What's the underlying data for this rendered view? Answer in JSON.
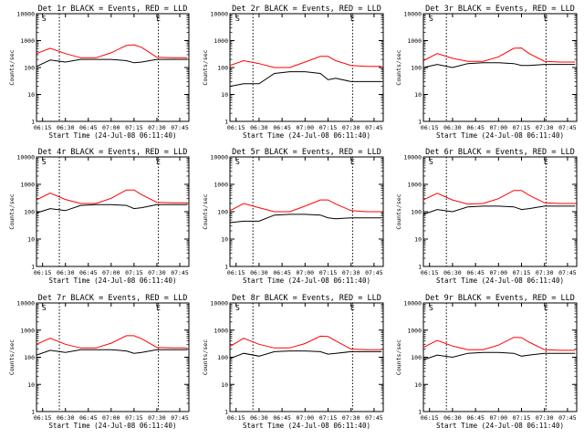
{
  "chart_data": [
    {
      "type": "line",
      "panel": "1r",
      "title": "Det 1r BLACK = Events, RED = LLD",
      "xlabel": "Start Time (24-Jul-08 06:11:40)",
      "ylabel": "Counts/sec",
      "x_ticks": [
        "06:15",
        "06:30",
        "06:45",
        "07:00",
        "07:15",
        "07:30",
        "07:45"
      ],
      "y_ticks": [
        "1",
        "10",
        "100",
        "1000",
        "10000"
      ],
      "y_scale": "log",
      "ylim": [
        1,
        10000
      ],
      "xlim": [
        "06:11",
        "07:51"
      ],
      "markers": [
        "S",
        "E"
      ],
      "marker_times": [
        "06:16",
        "07:31"
      ],
      "event_lines": [
        "06:26",
        "07:31"
      ],
      "series": [
        {
          "color": "#ff0000",
          "x": [
            "06:11",
            "06:20",
            "06:30",
            "06:40",
            "06:50",
            "07:00",
            "07:10",
            "07:15",
            "07:20",
            "07:30",
            "07:40",
            "07:50"
          ],
          "y": [
            330,
            520,
            330,
            230,
            230,
            350,
            660,
            700,
            560,
            240,
            230,
            230
          ]
        },
        {
          "color": "#000000",
          "x": [
            "06:11",
            "06:20",
            "06:30",
            "06:40",
            "06:50",
            "07:00",
            "07:10",
            "07:15",
            "07:20",
            "07:30",
            "07:40",
            "07:50"
          ],
          "y": [
            110,
            190,
            160,
            200,
            200,
            200,
            180,
            150,
            160,
            200,
            200,
            200
          ]
        }
      ]
    },
    {
      "type": "line",
      "panel": "2r",
      "title": "Det 2r BLACK = Events, RED = LLD",
      "xlabel": "Start Time (24-Jul-08 06:11:40)",
      "ylabel": "Counts/sec",
      "x_ticks": [
        "06:15",
        "06:30",
        "06:45",
        "07:00",
        "07:15",
        "07:30",
        "07:45"
      ],
      "y_ticks": [
        "1",
        "10",
        "100",
        "1000",
        "10000"
      ],
      "y_scale": "log",
      "ylim": [
        1,
        10000
      ],
      "xlim": [
        "06:11",
        "07:51"
      ],
      "markers": [
        "S",
        "E"
      ],
      "marker_times": [
        "06:16",
        "07:31"
      ],
      "event_lines": [
        "06:26",
        "07:31"
      ],
      "series": [
        {
          "color": "#ff0000",
          "x": [
            "06:11",
            "06:20",
            "06:30",
            "06:40",
            "06:50",
            "07:00",
            "07:10",
            "07:15",
            "07:20",
            "07:30",
            "07:40",
            "07:50"
          ],
          "y": [
            120,
            180,
            140,
            100,
            100,
            160,
            260,
            260,
            180,
            120,
            110,
            110
          ]
        },
        {
          "color": "#000000",
          "x": [
            "06:11",
            "06:20",
            "06:30",
            "06:40",
            "06:50",
            "07:00",
            "07:10",
            "07:15",
            "07:20",
            "07:30",
            "07:40",
            "07:50"
          ],
          "y": [
            20,
            25,
            25,
            60,
            70,
            70,
            60,
            35,
            40,
            30,
            30,
            30
          ]
        }
      ]
    },
    {
      "type": "line",
      "panel": "3r",
      "title": "Det 3r BLACK = Events, RED = LLD",
      "xlabel": "Start Time (24-Jul-08 06:11:40)",
      "ylabel": "Counts/sec",
      "x_ticks": [
        "06:15",
        "06:30",
        "06:45",
        "07:00",
        "07:15",
        "07:30",
        "07:45"
      ],
      "y_ticks": [
        "1",
        "10",
        "100",
        "1000",
        "10000"
      ],
      "y_scale": "log",
      "ylim": [
        1,
        10000
      ],
      "xlim": [
        "06:11",
        "07:51"
      ],
      "markers": [
        "S",
        "E"
      ],
      "marker_times": [
        "06:16",
        "07:31"
      ],
      "event_lines": [
        "06:26",
        "07:31"
      ],
      "series": [
        {
          "color": "#ff0000",
          "x": [
            "06:11",
            "06:20",
            "06:30",
            "06:40",
            "06:50",
            "07:00",
            "07:10",
            "07:15",
            "07:20",
            "07:30",
            "07:40",
            "07:50"
          ],
          "y": [
            180,
            330,
            220,
            170,
            170,
            250,
            520,
            530,
            330,
            170,
            160,
            160
          ]
        },
        {
          "color": "#000000",
          "x": [
            "06:11",
            "06:20",
            "06:30",
            "06:40",
            "06:50",
            "07:00",
            "07:10",
            "07:15",
            "07:20",
            "07:30",
            "07:40",
            "07:50"
          ],
          "y": [
            100,
            130,
            100,
            140,
            150,
            150,
            140,
            120,
            120,
            130,
            130,
            130
          ]
        }
      ]
    },
    {
      "type": "line",
      "panel": "4r",
      "title": "Det 4r BLACK = Events, RED = LLD",
      "xlabel": "Start Time (24-Jul-08 06:11:40)",
      "ylabel": "Counts/sec",
      "x_ticks": [
        "06:15",
        "06:30",
        "06:45",
        "07:00",
        "07:15",
        "07:30",
        "07:45"
      ],
      "y_ticks": [
        "1",
        "10",
        "100",
        "1000",
        "10000"
      ],
      "y_scale": "log",
      "ylim": [
        1,
        10000
      ],
      "xlim": [
        "06:11",
        "07:51"
      ],
      "markers": [
        "S",
        "E"
      ],
      "marker_times": [
        "06:16",
        "07:31"
      ],
      "event_lines": [
        "06:26",
        "07:31"
      ],
      "series": [
        {
          "color": "#ff0000",
          "x": [
            "06:11",
            "06:20",
            "06:30",
            "06:40",
            "06:50",
            "07:00",
            "07:10",
            "07:15",
            "07:20",
            "07:30",
            "07:40",
            "07:50"
          ],
          "y": [
            270,
            480,
            280,
            200,
            200,
            310,
            620,
            620,
            420,
            220,
            210,
            210
          ]
        },
        {
          "color": "#000000",
          "x": [
            "06:11",
            "06:20",
            "06:30",
            "06:40",
            "06:50",
            "07:00",
            "07:10",
            "07:15",
            "07:20",
            "07:30",
            "07:40",
            "07:50"
          ],
          "y": [
            90,
            130,
            110,
            170,
            180,
            180,
            170,
            130,
            140,
            180,
            180,
            180
          ]
        }
      ]
    },
    {
      "type": "line",
      "panel": "5r",
      "title": "Det 5r BLACK = Events, RED = LLD",
      "xlabel": "Start Time (24-Jul-08 06:11:40)",
      "ylabel": "Counts/sec",
      "x_ticks": [
        "06:15",
        "06:30",
        "06:45",
        "07:00",
        "07:15",
        "07:30",
        "07:45"
      ],
      "y_ticks": [
        "1",
        "10",
        "100",
        "1000",
        "10000"
      ],
      "y_scale": "log",
      "ylim": [
        1,
        10000
      ],
      "xlim": [
        "06:11",
        "07:51"
      ],
      "markers": [
        "S",
        "E"
      ],
      "marker_times": [
        "06:16",
        "07:31"
      ],
      "event_lines": [
        "06:26",
        "07:31"
      ],
      "series": [
        {
          "color": "#ff0000",
          "x": [
            "06:11",
            "06:20",
            "06:30",
            "06:40",
            "06:50",
            "07:00",
            "07:10",
            "07:15",
            "07:20",
            "07:30",
            "07:40",
            "07:50"
          ],
          "y": [
            110,
            200,
            140,
            100,
            100,
            160,
            270,
            270,
            190,
            110,
            100,
            100
          ]
        },
        {
          "color": "#000000",
          "x": [
            "06:11",
            "06:20",
            "06:30",
            "06:40",
            "06:50",
            "07:00",
            "07:10",
            "07:15",
            "07:20",
            "07:30",
            "07:40",
            "07:50"
          ],
          "y": [
            40,
            45,
            45,
            75,
            80,
            80,
            75,
            60,
            55,
            60,
            60,
            60
          ]
        }
      ]
    },
    {
      "type": "line",
      "panel": "6r",
      "title": "Det 6r BLACK = Events, RED = LLD",
      "xlabel": "Start Time (24-Jul-08 06:11:40)",
      "ylabel": "Counts/sec",
      "x_ticks": [
        "06:15",
        "06:30",
        "06:45",
        "07:00",
        "07:15",
        "07:30",
        "07:45"
      ],
      "y_ticks": [
        "1",
        "10",
        "100",
        "1000",
        "10000"
      ],
      "y_scale": "log",
      "ylim": [
        1,
        10000
      ],
      "xlim": [
        "06:11",
        "07:51"
      ],
      "markers": [
        "S",
        "E"
      ],
      "marker_times": [
        "06:16",
        "07:31"
      ],
      "event_lines": [
        "06:26",
        "07:31"
      ],
      "series": [
        {
          "color": "#ff0000",
          "x": [
            "06:11",
            "06:20",
            "06:30",
            "06:40",
            "06:50",
            "07:00",
            "07:10",
            "07:15",
            "07:20",
            "07:30",
            "07:40",
            "07:50"
          ],
          "y": [
            270,
            470,
            270,
            190,
            200,
            300,
            600,
            600,
            400,
            210,
            200,
            200
          ]
        },
        {
          "color": "#000000",
          "x": [
            "06:11",
            "06:20",
            "06:30",
            "06:40",
            "06:50",
            "07:00",
            "07:10",
            "07:15",
            "07:20",
            "07:30",
            "07:40",
            "07:50"
          ],
          "y": [
            80,
            120,
            100,
            150,
            160,
            160,
            150,
            120,
            130,
            160,
            160,
            160
          ]
        }
      ]
    },
    {
      "type": "line",
      "panel": "7r",
      "title": "Det 7r BLACK = Events, RED = LLD",
      "xlabel": "Start Time (24-Jul-08 06:11:40)",
      "ylabel": "Counts/sec",
      "x_ticks": [
        "06:15",
        "06:30",
        "06:45",
        "07:00",
        "07:15",
        "07:30",
        "07:45"
      ],
      "y_ticks": [
        "1",
        "10",
        "100",
        "1000",
        "10000"
      ],
      "y_scale": "log",
      "ylim": [
        1,
        10000
      ],
      "xlim": [
        "06:11",
        "07:51"
      ],
      "markers": [
        "S",
        "E"
      ],
      "marker_times": [
        "06:16",
        "07:31"
      ],
      "event_lines": [
        "06:26",
        "07:31"
      ],
      "series": [
        {
          "color": "#ff0000",
          "x": [
            "06:11",
            "06:20",
            "06:30",
            "06:40",
            "06:50",
            "07:00",
            "07:10",
            "07:15",
            "07:20",
            "07:30",
            "07:40",
            "07:50"
          ],
          "y": [
            300,
            500,
            300,
            220,
            220,
            330,
            620,
            620,
            480,
            230,
            220,
            220
          ]
        },
        {
          "color": "#000000",
          "x": [
            "06:11",
            "06:20",
            "06:30",
            "06:40",
            "06:50",
            "07:00",
            "07:10",
            "07:15",
            "07:20",
            "07:30",
            "07:40",
            "07:50"
          ],
          "y": [
            120,
            180,
            150,
            190,
            190,
            190,
            170,
            140,
            150,
            190,
            190,
            190
          ]
        }
      ]
    },
    {
      "type": "line",
      "panel": "8r",
      "title": "Det 8r BLACK = Events, RED = LLD",
      "xlabel": "Start Time (24-Jul-08 06:11:40)",
      "ylabel": "Counts/sec",
      "x_ticks": [
        "06:15",
        "06:30",
        "06:45",
        "07:00",
        "07:15",
        "07:30",
        "07:45"
      ],
      "y_ticks": [
        "1",
        "10",
        "100",
        "1000",
        "10000"
      ],
      "y_scale": "log",
      "ylim": [
        1,
        10000
      ],
      "xlim": [
        "06:11",
        "07:51"
      ],
      "markers": [
        "S",
        "E"
      ],
      "marker_times": [
        "06:16",
        "07:31"
      ],
      "event_lines": [
        "06:26",
        "07:31"
      ],
      "series": [
        {
          "color": "#ff0000",
          "x": [
            "06:11",
            "06:20",
            "06:30",
            "06:40",
            "06:50",
            "07:00",
            "07:10",
            "07:15",
            "07:20",
            "07:30",
            "07:40",
            "07:50"
          ],
          "y": [
            250,
            500,
            300,
            220,
            220,
            320,
            600,
            580,
            400,
            200,
            190,
            190
          ]
        },
        {
          "color": "#000000",
          "x": [
            "06:11",
            "06:20",
            "06:30",
            "06:40",
            "06:50",
            "07:00",
            "07:10",
            "07:15",
            "07:20",
            "07:30",
            "07:40",
            "07:50"
          ],
          "y": [
            90,
            140,
            110,
            160,
            170,
            170,
            160,
            130,
            140,
            160,
            160,
            160
          ]
        }
      ]
    },
    {
      "type": "line",
      "panel": "9r",
      "title": "Det 9r BLACK = Events, RED = LLD",
      "xlabel": "Start Time (24-Jul-08 06:11:40)",
      "ylabel": "Counts/sec",
      "x_ticks": [
        "06:15",
        "06:30",
        "06:45",
        "07:00",
        "07:15",
        "07:30",
        "07:45"
      ],
      "y_ticks": [
        "1",
        "10",
        "100",
        "1000",
        "10000"
      ],
      "y_scale": "log",
      "ylim": [
        1,
        10000
      ],
      "xlim": [
        "06:11",
        "07:51"
      ],
      "markers": [
        "S",
        "E"
      ],
      "marker_times": [
        "06:16",
        "07:31"
      ],
      "event_lines": [
        "06:26",
        "07:31"
      ],
      "series": [
        {
          "color": "#ff0000",
          "x": [
            "06:11",
            "06:20",
            "06:30",
            "06:40",
            "06:50",
            "07:00",
            "07:10",
            "07:15",
            "07:20",
            "07:30",
            "07:40",
            "07:50"
          ],
          "y": [
            230,
            420,
            260,
            190,
            190,
            280,
            540,
            530,
            360,
            190,
            180,
            180
          ]
        },
        {
          "color": "#000000",
          "x": [
            "06:11",
            "06:20",
            "06:30",
            "06:40",
            "06:50",
            "07:00",
            "07:10",
            "07:15",
            "07:20",
            "07:30",
            "07:40",
            "07:50"
          ],
          "y": [
            80,
            120,
            100,
            140,
            150,
            150,
            140,
            110,
            120,
            140,
            140,
            140
          ]
        }
      ]
    }
  ]
}
